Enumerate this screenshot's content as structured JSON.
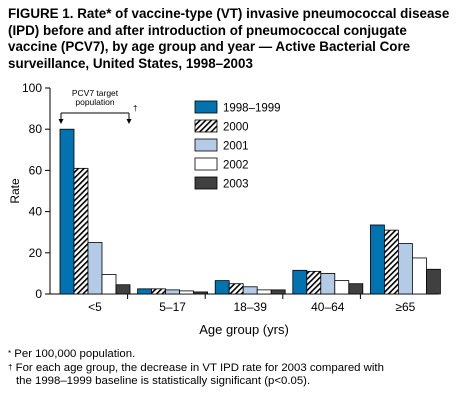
{
  "figure_title": "FIGURE 1. Rate* of vaccine-type (VT) invasive pneumococcal disease (IPD) before and after introduction of pneumococcal conjugate vaccine (PCV7), by age group and year — Active Bacterial Core surveillance, United States, 1998–2003",
  "footnotes": {
    "star_mark": "*",
    "star_text": "Per 100,000 population.",
    "dagger_mark": "†",
    "dagger_line1": "For each age group, the decrease in VT IPD rate for 2003 compared with",
    "dagger_line2": "the 1998–1999 baseline is statistically significant (p<0.05)."
  },
  "chart_data": {
    "type": "bar",
    "ylabel": "Rate",
    "xlabel": "Age group (yrs)",
    "ylim": [
      0,
      100
    ],
    "yticks": [
      0,
      20,
      40,
      60,
      80,
      100
    ],
    "categories": [
      "<5",
      "5–17",
      "18–39",
      "40–64",
      "≥65"
    ],
    "series": [
      {
        "name": "1998–1999",
        "color": "#0073b0",
        "pattern": "solid",
        "values": [
          80,
          2.5,
          6.5,
          11.5,
          33.5
        ]
      },
      {
        "name": "2000",
        "color": "#000000",
        "pattern": "hatch",
        "values": [
          61,
          2.5,
          5,
          11,
          31
        ]
      },
      {
        "name": "2001",
        "color": "#b3cbe6",
        "pattern": "solid",
        "values": [
          25,
          2,
          3.5,
          10,
          24.5
        ]
      },
      {
        "name": "2002",
        "color": "#ffffff",
        "pattern": "solid",
        "values": [
          9.5,
          1.5,
          2,
          6.5,
          17.5
        ]
      },
      {
        "name": "2003",
        "color": "#404040",
        "pattern": "solid",
        "values": [
          4.5,
          1,
          2,
          5,
          12
        ]
      }
    ],
    "legend_position": "top-center",
    "annotation": {
      "label_line1": "PCV7 target",
      "label_line2": "population",
      "dagger": "†",
      "spans_category": "<5"
    }
  }
}
